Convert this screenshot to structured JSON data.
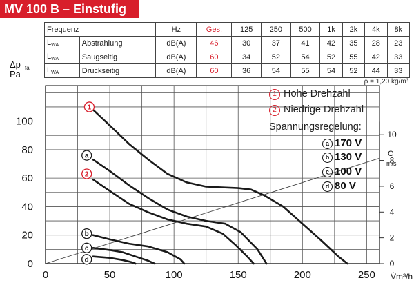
{
  "title": "MV 100 B – Einstufig",
  "table": {
    "header": [
      "Frequenz",
      "Hz",
      "Ges.",
      "125",
      "250",
      "500",
      "1k",
      "2k",
      "4k",
      "8k"
    ],
    "rows": [
      {
        "sym": "L",
        "sub": "WA",
        "label": "Abstrahlung",
        "unit": "dB(A)",
        "ges": "46",
        "values": [
          "30",
          "37",
          "41",
          "42",
          "35",
          "28",
          "23"
        ]
      },
      {
        "sym": "L",
        "sub": "WA",
        "label": "Saugseitig",
        "unit": "dB(A)",
        "ges": "60",
        "values": [
          "34",
          "52",
          "54",
          "52",
          "55",
          "42",
          "33"
        ]
      },
      {
        "sym": "L",
        "sub": "WA",
        "label": "Druckseitig",
        "unit": "dB(A)",
        "ges": "60",
        "values": [
          "36",
          "54",
          "55",
          "54",
          "52",
          "44",
          "33"
        ]
      }
    ]
  },
  "density_note": "ρ = 1,20 kg/m³",
  "legend": {
    "curve_1": {
      "marker": "1",
      "label": "Hohe Drehzahl"
    },
    "curve_2": {
      "marker": "2",
      "label": "Niedrige Drehzahl"
    },
    "regulation_title": "Spannungsregelung:",
    "voltages": [
      {
        "marker": "a",
        "label": "170 V"
      },
      {
        "marker": "b",
        "label": "130 V"
      },
      {
        "marker": "c",
        "label": "100 V"
      },
      {
        "marker": "d",
        "label": "80 V"
      }
    ]
  },
  "colors": {
    "brand_red": "#d81e2b",
    "curve": "#1a1a1a",
    "grid": "#555555"
  },
  "chart_data": {
    "type": "line",
    "xlabel": "V̇m³/h",
    "ylabel": "Δp_fa Pa",
    "ylabel_top": "Δp",
    "ylabel_sub": "fa",
    "ylabel_unit": "Pa",
    "xlim": [
      0,
      260
    ],
    "ylim": [
      0,
      125
    ],
    "x_ticks": [
      0,
      50,
      100,
      150,
      200,
      250
    ],
    "y_ticks": [
      0,
      20,
      40,
      60,
      80,
      100
    ],
    "right_axis": {
      "label_top": "C",
      "label_unit": "m/s",
      "range": [
        0,
        12
      ],
      "ticks": [
        0,
        2,
        4,
        6,
        8,
        10
      ]
    },
    "grid": true,
    "series": [
      {
        "name": "1",
        "marker_x": 33,
        "marker_y": 110,
        "points": [
          [
            37,
            108
          ],
          [
            50,
            97
          ],
          [
            65,
            84
          ],
          [
            80,
            73
          ],
          [
            95,
            63
          ],
          [
            110,
            57
          ],
          [
            125,
            54
          ],
          [
            150,
            53
          ],
          [
            160,
            52
          ],
          [
            170,
            48
          ],
          [
            185,
            40
          ],
          [
            200,
            28
          ],
          [
            215,
            16
          ],
          [
            228,
            5
          ],
          [
            235,
            0
          ]
        ]
      },
      {
        "name": "a",
        "marker_x": 31,
        "marker_y": 76,
        "points": [
          [
            37,
            73
          ],
          [
            50,
            65
          ],
          [
            65,
            55
          ],
          [
            80,
            46
          ],
          [
            95,
            38
          ],
          [
            110,
            33
          ],
          [
            125,
            30
          ],
          [
            140,
            28
          ],
          [
            152,
            22
          ],
          [
            165,
            10
          ],
          [
            172,
            0
          ]
        ]
      },
      {
        "name": "2",
        "marker_x": 31,
        "marker_y": 63,
        "points": [
          [
            37,
            59
          ],
          [
            50,
            51
          ],
          [
            65,
            42
          ],
          [
            80,
            36
          ],
          [
            95,
            31
          ],
          [
            110,
            28
          ],
          [
            125,
            26
          ],
          [
            138,
            21
          ],
          [
            148,
            13
          ],
          [
            157,
            5
          ],
          [
            162,
            0
          ]
        ]
      },
      {
        "name": "b",
        "marker_x": 31,
        "marker_y": 21,
        "points": [
          [
            37,
            20
          ],
          [
            50,
            17
          ],
          [
            65,
            14
          ],
          [
            80,
            12
          ],
          [
            95,
            8
          ],
          [
            105,
            3
          ],
          [
            108,
            0
          ]
        ]
      },
      {
        "name": "c",
        "marker_x": 31,
        "marker_y": 11,
        "points": [
          [
            37,
            11
          ],
          [
            50,
            9.5
          ],
          [
            60,
            8
          ],
          [
            70,
            5
          ],
          [
            80,
            2
          ],
          [
            85,
            0
          ]
        ]
      },
      {
        "name": "d",
        "marker_x": 31,
        "marker_y": 3,
        "points": [
          [
            37,
            5
          ],
          [
            50,
            4
          ],
          [
            60,
            2.5
          ],
          [
            67,
            1
          ],
          [
            70,
            0
          ]
        ]
      }
    ],
    "velocity_line": {
      "points": [
        [
          0,
          0
        ],
        [
          260,
          74
        ]
      ]
    }
  }
}
